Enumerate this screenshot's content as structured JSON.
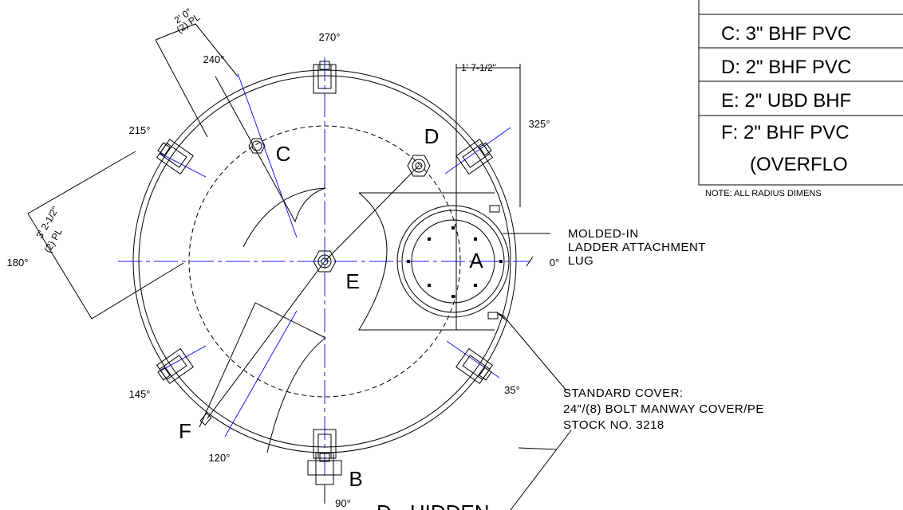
{
  "angle_labels": [
    "270°",
    "240°",
    "215°",
    "180°",
    "145°",
    "120°",
    "90°",
    "35°",
    "0°",
    "325°"
  ],
  "dimensions": [
    "2' 0\"",
    "(2) PL",
    "3' 2-1/2\"",
    "(2) PL",
    "1' 7-1/2\""
  ],
  "fitting_labels": [
    "A",
    "B",
    "C",
    "D",
    "E",
    "F"
  ],
  "callouts": {
    "ladder_lug": [
      "MOLDED-IN",
      "LADDER ATTACHMENT",
      "LUG"
    ],
    "standard_cover": [
      "STANDARD COVER:",
      "24\"/(8) BOLT MANWAY COVER/PE",
      "STOCK NO. 3218"
    ],
    "hidden": "D - HIDDEN"
  },
  "legend_table": {
    "rows": [
      "C: 3\" BHF PVC",
      "D: 2\" BHF PVC",
      "E: 2\" UBD BHF",
      "F: 2\" BHF PVC",
      "(OVERFLO"
    ],
    "note": "NOTE: ALL RADIUS DIMENS"
  }
}
